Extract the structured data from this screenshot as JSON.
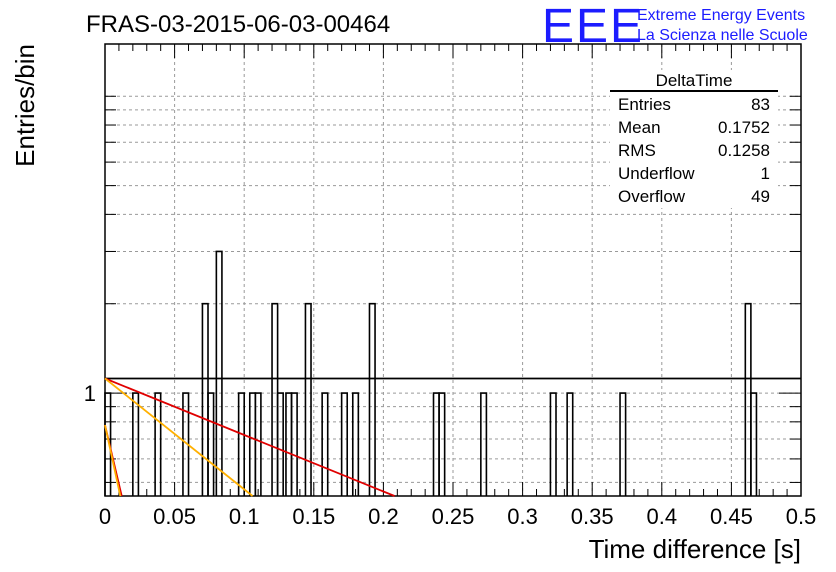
{
  "chart_data": {
    "type": "histogram",
    "title": "FRAS-03-2015-06-03-00464",
    "xlabel": "Time difference [s]",
    "ylabel": "Entries/bin",
    "xlim": [
      0,
      0.5
    ],
    "ylog": true,
    "ylim": [
      0.45,
      15
    ],
    "grid": true,
    "x_ticks": [
      "0",
      "0.05",
      "0.1",
      "0.15",
      "0.2",
      "0.25",
      "0.3",
      "0.35",
      "0.4",
      "0.45",
      "0.5"
    ],
    "y_ticks": [
      "1"
    ],
    "bin_width": 0.004,
    "bins": [
      {
        "x0": 0.0,
        "value": 1
      },
      {
        "x0": 0.02,
        "value": 1
      },
      {
        "x0": 0.036,
        "value": 1
      },
      {
        "x0": 0.056,
        "value": 1
      },
      {
        "x0": 0.07,
        "value": 2
      },
      {
        "x0": 0.074,
        "value": 1
      },
      {
        "x0": 0.08,
        "value": 3
      },
      {
        "x0": 0.096,
        "value": 1
      },
      {
        "x0": 0.104,
        "value": 1
      },
      {
        "x0": 0.108,
        "value": 1
      },
      {
        "x0": 0.12,
        "value": 2
      },
      {
        "x0": 0.124,
        "value": 1
      },
      {
        "x0": 0.13,
        "value": 1
      },
      {
        "x0": 0.134,
        "value": 1
      },
      {
        "x0": 0.144,
        "value": 2
      },
      {
        "x0": 0.156,
        "value": 1
      },
      {
        "x0": 0.17,
        "value": 1
      },
      {
        "x0": 0.178,
        "value": 1
      },
      {
        "x0": 0.19,
        "value": 2
      },
      {
        "x0": 0.236,
        "value": 1
      },
      {
        "x0": 0.24,
        "value": 1
      },
      {
        "x0": 0.27,
        "value": 1
      },
      {
        "x0": 0.32,
        "value": 1
      },
      {
        "x0": 0.332,
        "value": 1
      },
      {
        "x0": 0.37,
        "value": 1
      },
      {
        "x0": 0.46,
        "value": 2
      },
      {
        "x0": 0.464,
        "value": 1
      }
    ],
    "fit_lines": [
      {
        "color": "#000000",
        "points": [
          [
            0,
            1.12
          ],
          [
            0.5,
            1.12
          ]
        ]
      },
      {
        "color": "#e00000",
        "points": [
          [
            0,
            1.12
          ],
          [
            0.208,
            0.45
          ]
        ]
      },
      {
        "color": "#ffb000",
        "points": [
          [
            0,
            1.12
          ],
          [
            0.106,
            0.45
          ]
        ]
      },
      {
        "color": "#e00000",
        "points": [
          [
            0,
            0.78
          ],
          [
            0.012,
            0.45
          ]
        ]
      },
      {
        "color": "#ffb000",
        "points": [
          [
            0,
            0.78
          ],
          [
            0.011,
            0.45
          ]
        ]
      }
    ]
  },
  "stats": {
    "title": "DeltaTime",
    "rows": [
      {
        "label": "Entries",
        "value": "83"
      },
      {
        "label": "Mean",
        "value": "0.1752"
      },
      {
        "label": "RMS",
        "value": "0.1258"
      },
      {
        "label": "Underflow",
        "value": "1"
      },
      {
        "label": "Overflow",
        "value": "49"
      }
    ]
  },
  "logo": {
    "big": "EEE",
    "line1": "Extreme Energy Events",
    "line2": "La Scienza nelle Scuole"
  }
}
